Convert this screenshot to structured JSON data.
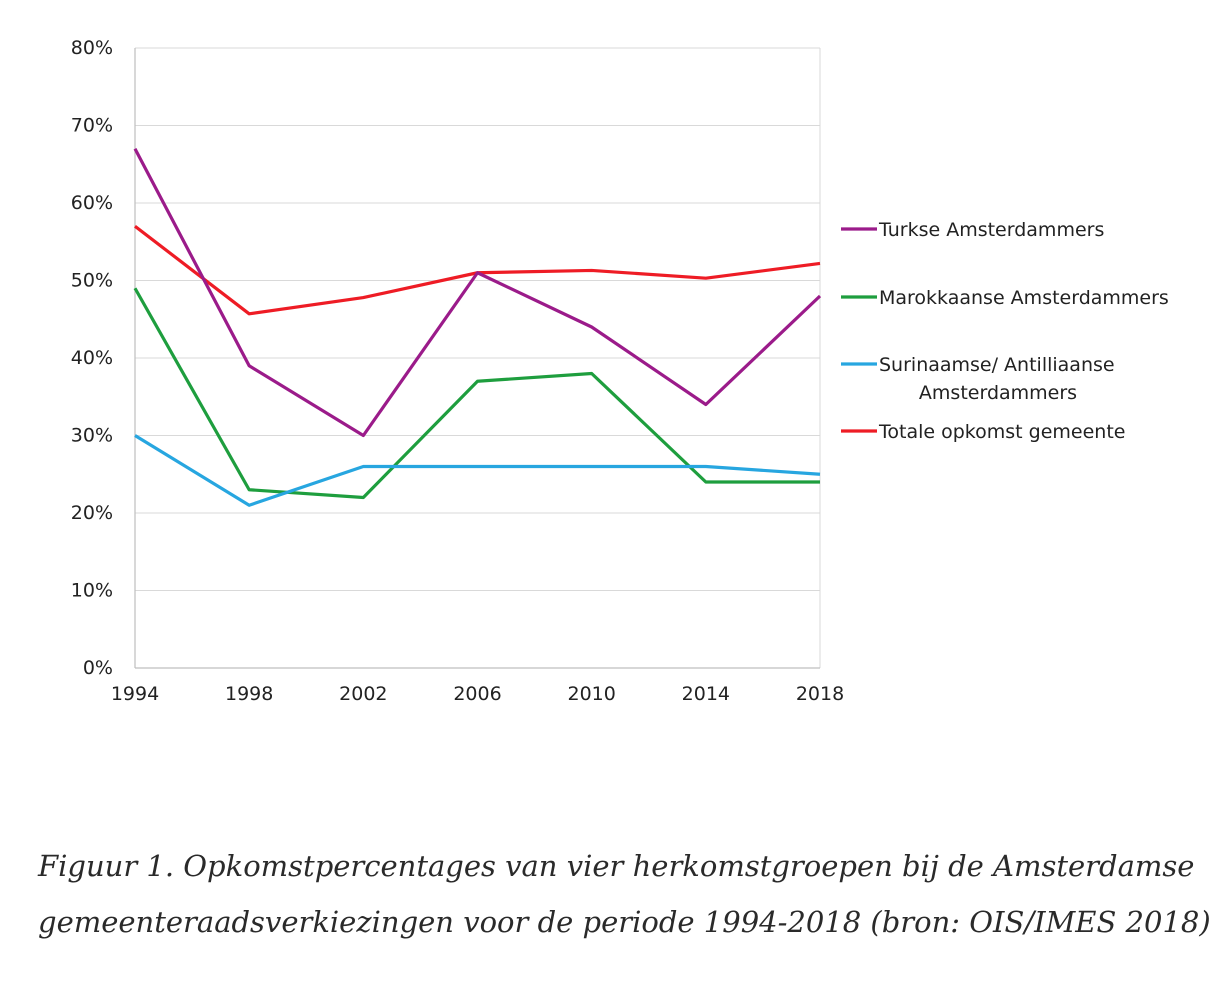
{
  "chart_data": {
    "type": "line",
    "x": [
      1994,
      1998,
      2002,
      2006,
      2010,
      2014,
      2018
    ],
    "x_tick_labels": [
      "1994",
      "1998",
      "2002",
      "2006",
      "2010",
      "2014",
      "2018"
    ],
    "y_tick_labels": [
      "0%",
      "10%",
      "20%",
      "30%",
      "40%",
      "50%",
      "60%",
      "70%",
      "80%"
    ],
    "ylim": [
      0,
      80
    ],
    "y_unit": "%",
    "grid": true,
    "legend_position": "right",
    "series": [
      {
        "name": "Turkse Amsterdammers",
        "name_lines": [
          "Turkse Amsterdammers"
        ],
        "color": "#9b1b8a",
        "values": [
          67,
          39,
          30,
          51,
          44,
          34,
          48
        ]
      },
      {
        "name": "Marokkaanse Amsterdammers",
        "name_lines": [
          "Marokkaanse Amsterdammers"
        ],
        "color": "#1e9e3e",
        "values": [
          49,
          23,
          22,
          37,
          38,
          24,
          24
        ]
      },
      {
        "name": "Surinaamse/ Antilliaanse Amsterdammers",
        "name_lines": [
          "Surinaamse/ Antilliaanse",
          "Amsterdammers"
        ],
        "color": "#27a6e0",
        "values": [
          30,
          21,
          26,
          26,
          26,
          26,
          25
        ]
      },
      {
        "name": "Totale opkomst gemeente",
        "name_lines": [
          "Totale opkomst gemeente"
        ],
        "color": "#ee1c25",
        "values": [
          57,
          45.7,
          47.8,
          51,
          51.3,
          50.3,
          52.2
        ]
      }
    ]
  },
  "caption": {
    "line1": "Figuur 1. Opkomstpercentages van vier herkomstgroepen bij de Amsterdamse",
    "line2": "gemeenteraadsverkiezingen voor de periode 1994-2018 (bron: OIS/IMES 2018)"
  }
}
